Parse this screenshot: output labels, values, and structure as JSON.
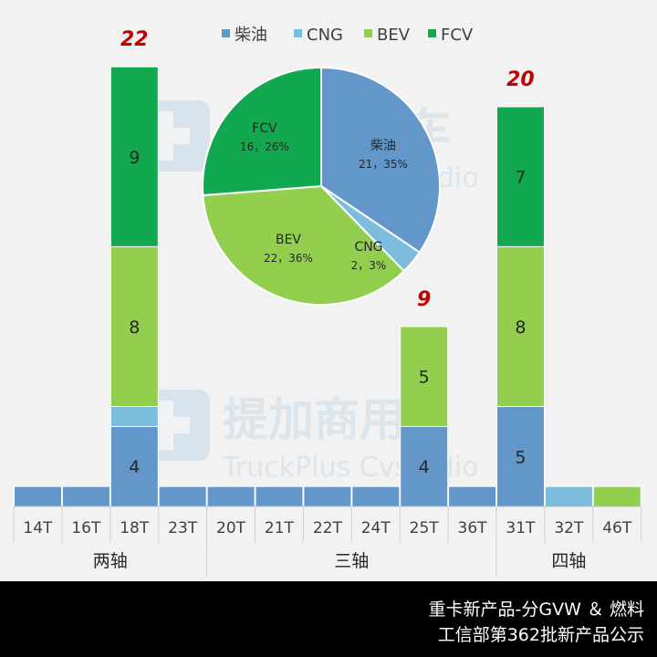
{
  "chart_data": [
    {
      "type": "bar",
      "stacked": true,
      "categories": [
        "14T",
        "16T",
        "18T",
        "23T",
        "20T",
        "21T",
        "22T",
        "24T",
        "25T",
        "36T",
        "31T",
        "32T",
        "46T"
      ],
      "groups": [
        {
          "label": "两轴",
          "categories": [
            "14T",
            "16T",
            "18T",
            "23T"
          ]
        },
        {
          "label": "三轴",
          "categories": [
            "20T",
            "21T",
            "22T",
            "24T",
            "25T",
            "36T"
          ]
        },
        {
          "label": "四轴",
          "categories": [
            "31T",
            "32T",
            "46T"
          ]
        }
      ],
      "series": [
        {
          "name": "柴油",
          "color": "#6397c9",
          "values": [
            1,
            1,
            4,
            1,
            1,
            1,
            1,
            1,
            4,
            1,
            5,
            0,
            0
          ]
        },
        {
          "name": "CNG",
          "color": "#7cbcdc",
          "values": [
            0,
            0,
            1,
            0,
            0,
            0,
            0,
            0,
            0,
            0,
            0,
            1,
            0
          ]
        },
        {
          "name": "BEV",
          "color": "#92cf4f",
          "values": [
            0,
            0,
            8,
            0,
            0,
            0,
            0,
            0,
            5,
            0,
            8,
            0,
            1
          ]
        },
        {
          "name": "FCV",
          "color": "#11a84f",
          "values": [
            0,
            0,
            9,
            0,
            0,
            0,
            0,
            0,
            0,
            0,
            7,
            0,
            0
          ]
        }
      ],
      "totals": [
        1,
        1,
        22,
        1,
        1,
        1,
        1,
        1,
        9,
        1,
        20,
        1,
        1
      ],
      "total_labels": {
        "18T": "22",
        "25T": "9",
        "31T": "20"
      },
      "segment_labels": [
        {
          "category": "18T",
          "series": "柴油",
          "text": "4"
        },
        {
          "category": "18T",
          "series": "BEV",
          "text": "8"
        },
        {
          "category": "18T",
          "series": "FCV",
          "text": "9"
        },
        {
          "category": "25T",
          "series": "柴油",
          "text": "4"
        },
        {
          "category": "25T",
          "series": "BEV",
          "text": "5"
        },
        {
          "category": "31T",
          "series": "柴油",
          "text": "5"
        },
        {
          "category": "31T",
          "series": "BEV",
          "text": "8"
        },
        {
          "category": "31T",
          "series": "FCV",
          "text": "7"
        }
      ],
      "legend": {
        "position": "top",
        "items": [
          "柴油",
          "CNG",
          "BEV",
          "FCV"
        ]
      },
      "total_label_color": "#c00000"
    },
    {
      "type": "pie",
      "slices": [
        {
          "name": "柴油",
          "value": 21,
          "percent": "35%",
          "color": "#6397c9",
          "label": "21，35%"
        },
        {
          "name": "CNG",
          "value": 2,
          "percent": "3%",
          "color": "#7cbcdc",
          "label": "2，3%"
        },
        {
          "name": "BEV",
          "value": 22,
          "percent": "36%",
          "color": "#92cf4f",
          "label": "22，36%"
        },
        {
          "name": "FCV",
          "value": 16,
          "percent": "26%",
          "color": "#11a84f",
          "label": "16，26%"
        }
      ]
    }
  ],
  "watermark": {
    "cn": "提加商用车",
    "en": "TruckPlus Cvstudio"
  },
  "footer": {
    "line1": "重卡新产品-分GVW ＆ 燃料",
    "line2": "工信部第362批新产品公示"
  }
}
